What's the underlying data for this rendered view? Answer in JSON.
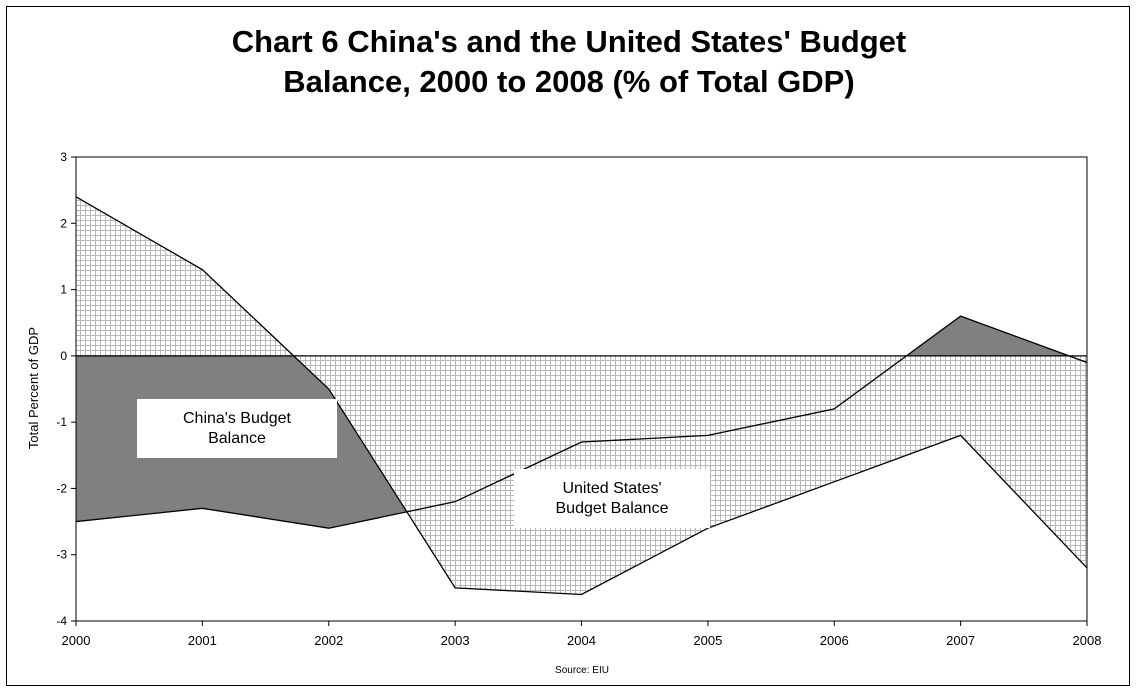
{
  "chart_data": {
    "type": "area",
    "title_lines": [
      "Chart 6 China's and the United States' Budget",
      "Balance, 2000 to 2008 (% of Total GDP)"
    ],
    "xlabel": "",
    "ylabel": "Total Percent of GDP",
    "source": "Source: EIU",
    "x": [
      "2000",
      "2001",
      "2002",
      "2003",
      "2004",
      "2005",
      "2006",
      "2007",
      "2008"
    ],
    "ylim": [
      -4,
      3
    ],
    "yticks": [
      3,
      2,
      1,
      0,
      -1,
      -2,
      -3,
      -4
    ],
    "series": [
      {
        "name": "China's Budget Balance",
        "label_lines": [
          "China's Budget",
          "Balance"
        ],
        "values": [
          -2.5,
          -2.3,
          -2.6,
          -2.2,
          -1.3,
          -1.2,
          -0.8,
          0.6,
          -0.1
        ],
        "fill": "#808080",
        "pattern": "solid"
      },
      {
        "name": "United States' Budget Balance",
        "label_lines": [
          "United States'",
          "Budget Balance"
        ],
        "values": [
          2.4,
          1.3,
          -0.5,
          -3.5,
          -3.6,
          -2.6,
          -1.9,
          -1.2,
          -3.2
        ],
        "fill": "#bdbdbd",
        "pattern": "grid"
      }
    ],
    "grid": false,
    "legend": "inline-labels"
  }
}
